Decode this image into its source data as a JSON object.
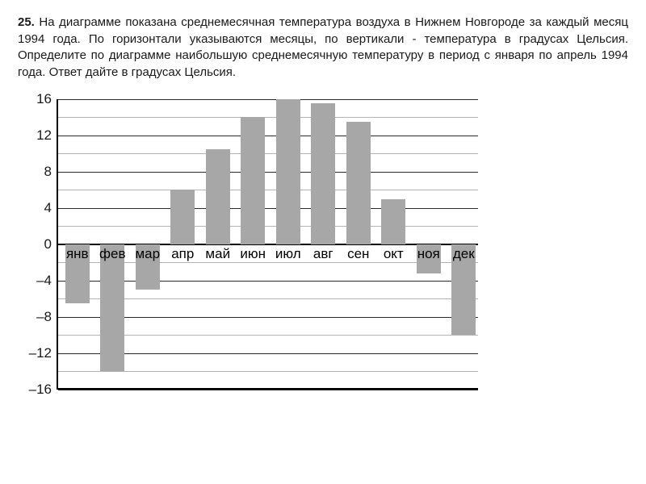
{
  "problem": {
    "number": "25.",
    "text": "На диаграмме показана среднемесячная температура воздуха в Нижнем Новгороде за каждый месяц 1994 года. По горизонтали указываются месяцы, по вертикали - температура в градусах Цельсия. Определите по диаграмме наибольшую среднемесячную температуру в период с января по апрель 1994 года. Ответ дайте в градусах Цельсия."
  },
  "chart": {
    "type": "bar",
    "ylim": [
      -16,
      16
    ],
    "ytick_step_major": 4,
    "ytick_labels": [
      16,
      12,
      8,
      4,
      0,
      -4,
      -8,
      -12,
      -16
    ],
    "yticks_minor": [
      14,
      10,
      6,
      2,
      -2,
      -6,
      -10,
      -14
    ],
    "categories": [
      "янв",
      "фев",
      "мар",
      "апр",
      "май",
      "июн",
      "июл",
      "авг",
      "сен",
      "окт",
      "ноя",
      "дек"
    ],
    "values": [
      -6.5,
      -14,
      -5,
      6,
      10.5,
      14,
      16,
      15.5,
      13.5,
      5,
      -3.2,
      -10
    ],
    "bar_color": "#a7a7a7",
    "grid_color_major": "#2a2a2a",
    "grid_color_minor": "#b4b4b4",
    "axis_color": "#000000",
    "background_color": "#ffffff",
    "bar_width_ratio": 0.68,
    "label_fontsize": 17,
    "text_color": "#1a1a1a"
  }
}
